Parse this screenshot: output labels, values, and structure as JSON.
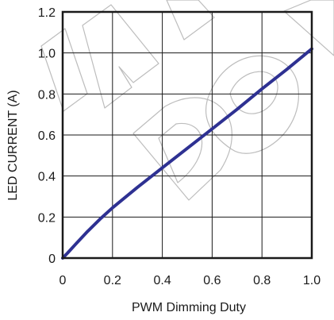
{
  "chart_data": {
    "type": "line",
    "title": "",
    "xlabel": "PWM Dimming Duty",
    "ylabel": "LED CURRENT (A)",
    "xlim": [
      0,
      1.0
    ],
    "ylim": [
      0,
      1.2
    ],
    "x_ticks": [
      "0",
      "0.2",
      "0.4",
      "0.6",
      "0.8",
      "1.0"
    ],
    "y_ticks": [
      "0",
      "0.2",
      "0.4",
      "0.6",
      "0.8",
      "1.0",
      "1.2"
    ],
    "grid": true,
    "series": [
      {
        "color": "#2e3192",
        "x": [
          0,
          0.02,
          0.05,
          0.1,
          0.15,
          0.2,
          0.3,
          0.4,
          0.5,
          0.6,
          0.7,
          0.8,
          0.9,
          1.0
        ],
        "y": [
          0,
          0.025,
          0.065,
          0.13,
          0.19,
          0.245,
          0.345,
          0.44,
          0.535,
          0.63,
          0.725,
          0.825,
          0.92,
          1.02
        ]
      }
    ]
  }
}
